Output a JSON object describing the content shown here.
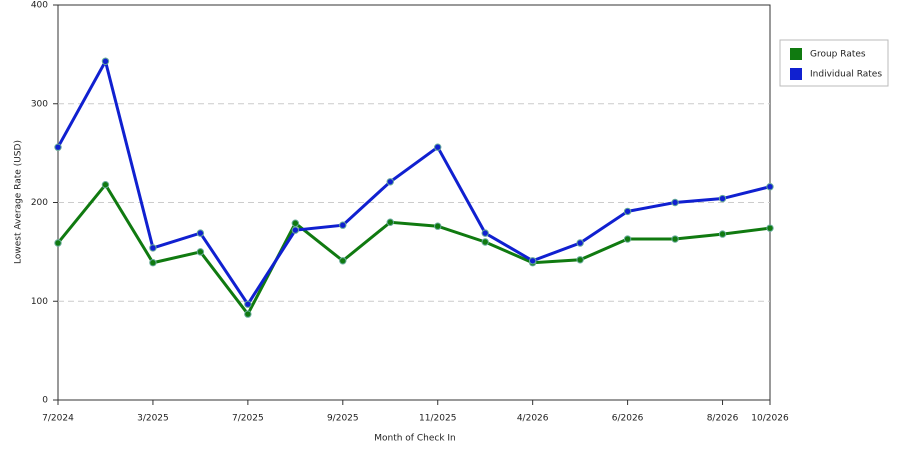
{
  "chart_data": {
    "type": "line",
    "x_label": "Month of Check In",
    "y_label": "Lowest Average Rate (USD)",
    "categories": [
      "7/2024",
      null,
      "3/2025",
      null,
      "7/2025",
      null,
      "9/2025",
      null,
      "11/2025",
      null,
      "4/2026",
      null,
      "6/2026",
      null,
      "8/2026",
      "10/2026"
    ],
    "series": [
      {
        "name": "Group Rates",
        "color": "#107a10",
        "values": [
          159,
          218,
          139,
          150,
          87,
          179,
          141,
          180,
          176,
          160,
          139,
          142,
          163,
          163,
          168,
          174
        ]
      },
      {
        "name": "Individual Rates",
        "color": "#1020d0",
        "values": [
          256,
          343,
          154,
          169,
          97,
          172,
          177,
          221,
          256,
          169,
          141,
          159,
          191,
          200,
          204,
          216
        ]
      }
    ],
    "ylim": [
      0,
      400
    ],
    "yticks": [
      0,
      100,
      200,
      300,
      400
    ],
    "grid": true,
    "legend": "right"
  }
}
